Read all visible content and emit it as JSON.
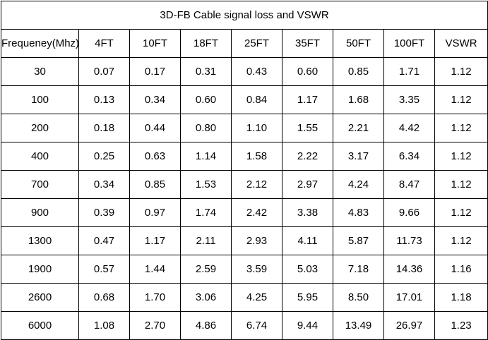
{
  "table": {
    "title": "3D-FB Cable signal loss and VSWR",
    "headers": [
      "Frequeney(Mhz)",
      "4FT",
      "10FT",
      "18FT",
      "25FT",
      "35FT",
      "50FT",
      "100FT",
      "VSWR"
    ],
    "rows": [
      [
        "30",
        "0.07",
        "0.17",
        "0.31",
        "0.43",
        "0.60",
        "0.85",
        "1.71",
        "1.12"
      ],
      [
        "100",
        "0.13",
        "0.34",
        "0.60",
        "0.84",
        "1.17",
        "1.68",
        "3.35",
        "1.12"
      ],
      [
        "200",
        "0.18",
        "0.44",
        "0.80",
        "1.10",
        "1.55",
        "2.21",
        "4.42",
        "1.12"
      ],
      [
        "400",
        "0.25",
        "0.63",
        "1.14",
        "1.58",
        "2.22",
        "3.17",
        "6.34",
        "1.12"
      ],
      [
        "700",
        "0.34",
        "0.85",
        "1.53",
        "2.12",
        "2.97",
        "4.24",
        "8.47",
        "1.12"
      ],
      [
        "900",
        "0.39",
        "0.97",
        "1.74",
        "2.42",
        "3.38",
        "4.83",
        "9.66",
        "1.12"
      ],
      [
        "1300",
        "0.47",
        "1.17",
        "2.11",
        "2.93",
        "4.11",
        "5.87",
        "11.73",
        "1.12"
      ],
      [
        "1900",
        "0.57",
        "1.44",
        "2.59",
        "3.59",
        "5.03",
        "7.18",
        "14.36",
        "1.16"
      ],
      [
        "2600",
        "0.68",
        "1.70",
        "3.06",
        "4.25",
        "5.95",
        "8.50",
        "17.01",
        "1.18"
      ],
      [
        "6000",
        "1.08",
        "2.70",
        "4.86",
        "6.74",
        "9.44",
        "13.49",
        "26.97",
        "1.23"
      ]
    ]
  }
}
